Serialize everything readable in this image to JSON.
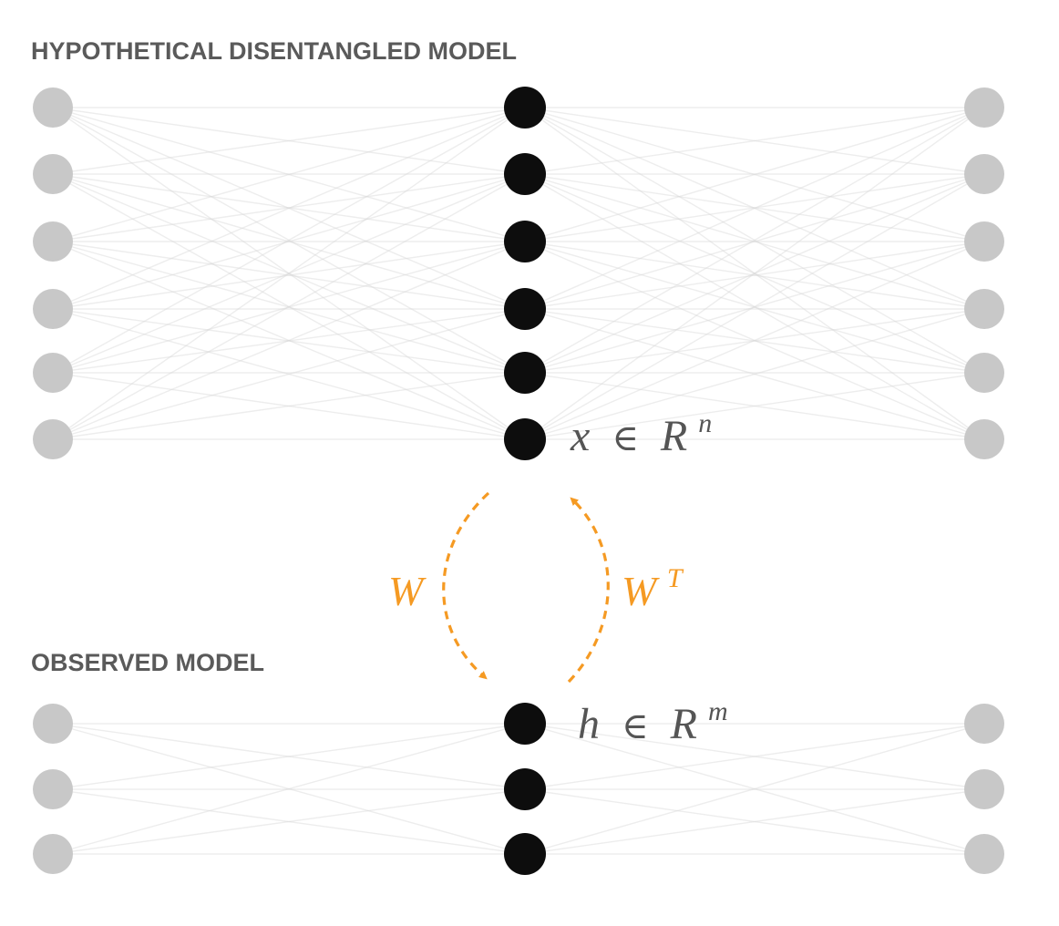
{
  "colors": {
    "background": "#ffffff",
    "title_text": "#5a5a5a",
    "math_text": "#555555",
    "outer_node": "#c8c8c8",
    "inner_node": "#0d0d0d",
    "edge": "#d6d6d6",
    "arrow": "#f59a23"
  },
  "top_model": {
    "title": "HYPOTHETICAL DISENTANGLED MODEL",
    "left_nodes": 6,
    "middle_nodes": 6,
    "right_nodes": 6,
    "label": {
      "var": "x",
      "rel": "∈",
      "set": "R",
      "exp": "n"
    }
  },
  "bottom_model": {
    "title": "OBSERVED MODEL",
    "left_nodes": 3,
    "middle_nodes": 3,
    "right_nodes": 3,
    "label": {
      "var": "h",
      "rel": "∈",
      "set": "R",
      "exp": "m"
    }
  },
  "projection": {
    "down": {
      "label": "W",
      "sup": ""
    },
    "up": {
      "label": "W",
      "sup": "T"
    }
  }
}
